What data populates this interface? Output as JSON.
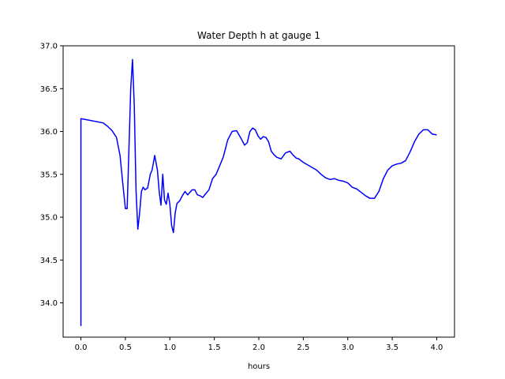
{
  "chart_data": {
    "type": "line",
    "title": "Water Depth h at gauge 1",
    "xlabel": "hours",
    "ylabel": "",
    "xlim": [
      -0.2,
      4.2
    ],
    "ylim": [
      33.6,
      37.0
    ],
    "xticks": [
      0.0,
      0.5,
      1.0,
      1.5,
      2.0,
      2.5,
      3.0,
      3.5,
      4.0
    ],
    "xtick_labels": [
      "0.0",
      "0.5",
      "1.0",
      "1.5",
      "2.0",
      "2.5",
      "3.0",
      "3.5",
      "4.0"
    ],
    "yticks": [
      34.0,
      34.5,
      35.0,
      35.5,
      36.0,
      36.5,
      37.0
    ],
    "ytick_labels": [
      "34.0",
      "34.5",
      "35.0",
      "35.5",
      "36.0",
      "36.5",
      "37.0"
    ],
    "grid": false,
    "series": [
      {
        "color": "#0000ff",
        "x": [
          0.0,
          0.0,
          0.25,
          0.3,
          0.35,
          0.4,
          0.44,
          0.47,
          0.5,
          0.52,
          0.54,
          0.56,
          0.58,
          0.6,
          0.62,
          0.64,
          0.66,
          0.68,
          0.7,
          0.72,
          0.75,
          0.78,
          0.8,
          0.83,
          0.86,
          0.88,
          0.9,
          0.92,
          0.94,
          0.96,
          0.98,
          1.0,
          1.02,
          1.04,
          1.06,
          1.08,
          1.11,
          1.14,
          1.17,
          1.2,
          1.25,
          1.28,
          1.31,
          1.34,
          1.37,
          1.4,
          1.44,
          1.48,
          1.52,
          1.56,
          1.6,
          1.65,
          1.7,
          1.75,
          1.8,
          1.84,
          1.87,
          1.9,
          1.93,
          1.96,
          1.99,
          2.02,
          2.05,
          2.08,
          2.11,
          2.14,
          2.17,
          2.2,
          2.25,
          2.3,
          2.35,
          2.38,
          2.42,
          2.45,
          2.5,
          2.55,
          2.6,
          2.65,
          2.7,
          2.75,
          2.8,
          2.85,
          2.9,
          2.95,
          3.0,
          3.05,
          3.1,
          3.15,
          3.2,
          3.25,
          3.3,
          3.35,
          3.4,
          3.45,
          3.5,
          3.55,
          3.6,
          3.65,
          3.7,
          3.75,
          3.8,
          3.85,
          3.9,
          3.95,
          4.0
        ],
        "y": [
          33.73,
          36.15,
          36.1,
          36.06,
          36.01,
          35.93,
          35.72,
          35.4,
          35.1,
          35.1,
          35.8,
          36.5,
          36.84,
          36.3,
          35.3,
          34.86,
          35.05,
          35.3,
          35.35,
          35.32,
          35.34,
          35.5,
          35.55,
          35.72,
          35.55,
          35.3,
          35.14,
          35.5,
          35.2,
          35.15,
          35.28,
          35.15,
          34.9,
          34.82,
          35.05,
          35.16,
          35.19,
          35.25,
          35.3,
          35.26,
          35.32,
          35.32,
          35.26,
          35.25,
          35.23,
          35.27,
          35.32,
          35.45,
          35.5,
          35.6,
          35.7,
          35.9,
          36.0,
          36.01,
          35.92,
          35.84,
          35.87,
          36.0,
          36.04,
          36.02,
          35.95,
          35.91,
          35.94,
          35.93,
          35.88,
          35.77,
          35.73,
          35.7,
          35.68,
          35.75,
          35.77,
          35.73,
          35.69,
          35.68,
          35.64,
          35.61,
          35.58,
          35.55,
          35.5,
          35.46,
          35.44,
          35.45,
          35.43,
          35.42,
          35.4,
          35.35,
          35.33,
          35.29,
          35.25,
          35.22,
          35.22,
          35.3,
          35.45,
          35.55,
          35.6,
          35.62,
          35.63,
          35.66,
          35.76,
          35.88,
          35.97,
          36.02,
          36.02,
          35.97,
          35.96
        ]
      }
    ]
  }
}
